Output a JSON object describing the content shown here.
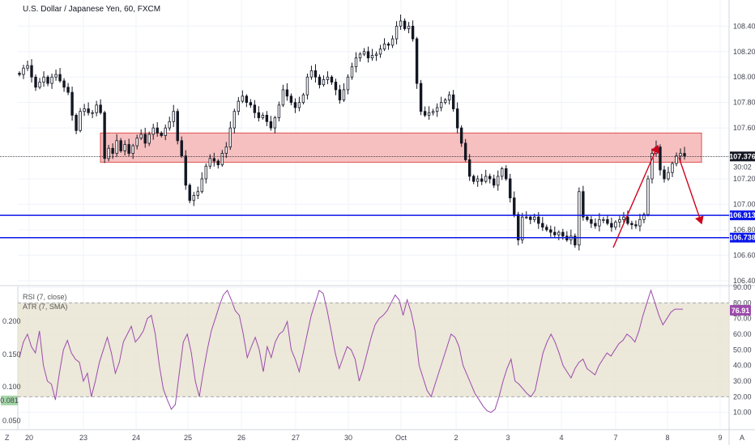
{
  "chart_data": [
    {
      "type": "candlestick",
      "title": "U.S. Dollar / Japanese Yen, 60, FXCM",
      "ylim": [
        106.38,
        108.58
      ],
      "y_ticks": [
        "108.400",
        "108.200",
        "108.000",
        "107.800",
        "107.600",
        "107.200",
        "107.000",
        "106.800",
        "106.600",
        "106.400"
      ],
      "x_ticks": [
        "20",
        "23",
        "24",
        "25",
        "26",
        "27",
        "30",
        "Oct",
        "2",
        "3",
        "4",
        "7",
        "8",
        "9"
      ],
      "price_lines": [
        {
          "label": "107.376",
          "value": 107.376,
          "color": "#131722"
        },
        {
          "label": "106.913",
          "value": 106.913,
          "color": "#0b17e8"
        },
        {
          "label": "106.738",
          "value": 106.738,
          "color": "#0b17e8"
        }
      ],
      "countdown": "30:02",
      "zone": {
        "from": 107.33,
        "to": 107.56,
        "color": "#f4b5b5"
      },
      "candles_close": [
        108.02,
        108.07,
        108.09,
        108.0,
        107.92,
        107.96,
        108.0,
        107.95,
        108.0,
        108.02,
        107.97,
        107.92,
        107.88,
        107.7,
        107.58,
        107.73,
        107.75,
        107.72,
        107.72,
        107.78,
        107.72,
        107.36,
        107.44,
        107.4,
        107.5,
        107.42,
        107.47,
        107.4,
        107.46,
        107.52,
        107.55,
        107.48,
        107.55,
        107.6,
        107.56,
        107.54,
        107.6,
        107.65,
        107.73,
        107.5,
        107.38,
        107.15,
        107.03,
        107.07,
        107.1,
        107.2,
        107.3,
        107.36,
        107.34,
        107.31,
        107.4,
        107.45,
        107.6,
        107.73,
        107.81,
        107.85,
        107.8,
        107.78,
        107.72,
        107.68,
        107.7,
        107.65,
        107.6,
        107.68,
        107.78,
        107.9,
        107.85,
        107.8,
        107.76,
        107.8,
        107.86,
        108.0,
        108.05,
        108.0,
        107.94,
        107.98,
        108.0,
        107.96,
        107.9,
        107.82,
        107.9,
        108.0,
        108.08,
        108.15,
        108.18,
        108.2,
        108.15,
        108.17,
        108.18,
        108.22,
        108.26,
        108.25,
        108.3,
        108.4,
        108.44,
        108.38,
        108.4,
        108.3,
        107.95,
        107.73,
        107.7,
        107.72,
        107.73,
        107.76,
        107.8,
        107.82,
        107.86,
        107.75,
        107.6,
        107.48,
        107.35,
        107.22,
        107.18,
        107.2,
        107.18,
        107.22,
        107.2,
        107.15,
        107.22,
        107.28,
        107.2,
        107.05,
        106.92,
        106.72,
        106.9,
        106.9,
        106.88,
        106.9,
        106.85,
        106.82,
        106.8,
        106.78,
        106.76,
        106.78,
        106.75,
        106.72,
        106.75,
        106.68,
        107.1,
        106.9,
        106.88,
        106.85,
        106.83,
        106.88,
        106.88,
        106.85,
        106.82,
        106.86,
        106.88,
        106.9,
        106.85,
        106.84,
        106.83,
        106.88,
        106.92,
        107.2,
        107.4,
        107.45,
        107.27,
        107.2,
        107.25,
        107.32,
        107.38,
        107.4,
        107.38
      ]
    },
    {
      "type": "line",
      "series": [
        {
          "name": "RSI (7, close)",
          "color": "#9c4bab"
        },
        {
          "name": "ATR (7, SMA)",
          "color": "#ff6d00"
        }
      ],
      "ylim": [
        0,
        90
      ],
      "y_ticks": [
        "90.00",
        "80.00",
        "70.00",
        "60.00",
        "50.00",
        "40.00",
        "30.00",
        "20.00",
        "10.00"
      ],
      "left_ticks": [
        "0.200",
        "0.150",
        "0.100",
        "0.050"
      ],
      "atr_badge": "0.081",
      "rsi_badge": "76.91",
      "band": [
        20,
        80
      ],
      "values": [
        45,
        55,
        60,
        52,
        48,
        62,
        40,
        30,
        28,
        18,
        35,
        50,
        56,
        48,
        44,
        42,
        30,
        35,
        20,
        30,
        42,
        50,
        58,
        48,
        35,
        42,
        55,
        60,
        65,
        55,
        58,
        62,
        70,
        72,
        60,
        40,
        25,
        18,
        12,
        15,
        35,
        55,
        60,
        48,
        30,
        20,
        36,
        50,
        62,
        70,
        78,
        85,
        88,
        82,
        75,
        72,
        60,
        45,
        52,
        58,
        50,
        36,
        52,
        45,
        55,
        60,
        62,
        68,
        50,
        44,
        36,
        48,
        60,
        72,
        80,
        88,
        86,
        75,
        62,
        48,
        38,
        45,
        52,
        50,
        44,
        30,
        38,
        48,
        58,
        66,
        70,
        72,
        75,
        80,
        85,
        82,
        72,
        82,
        74,
        62,
        40,
        32,
        24,
        20,
        28,
        36,
        44,
        52,
        60,
        58,
        52,
        40,
        34,
        28,
        22,
        18,
        14,
        11,
        10,
        12,
        20,
        30,
        38,
        44,
        30,
        28,
        25,
        22,
        20,
        24,
        36,
        48,
        55,
        60,
        55,
        48,
        40,
        36,
        32,
        38,
        42,
        44,
        38,
        36,
        34,
        40,
        44,
        48,
        46,
        50,
        54,
        56,
        60,
        58,
        55,
        62,
        72,
        80,
        88,
        80,
        72,
        66,
        70,
        74,
        76,
        76,
        76
      ]
    }
  ],
  "time_axis": {
    "labels": [
      "20",
      "23",
      "24",
      "25",
      "26",
      "27",
      "30",
      "Oct",
      "2",
      "3",
      "4",
      "7",
      "8",
      "9"
    ],
    "corner_left": "Z",
    "corner_right": "A"
  }
}
